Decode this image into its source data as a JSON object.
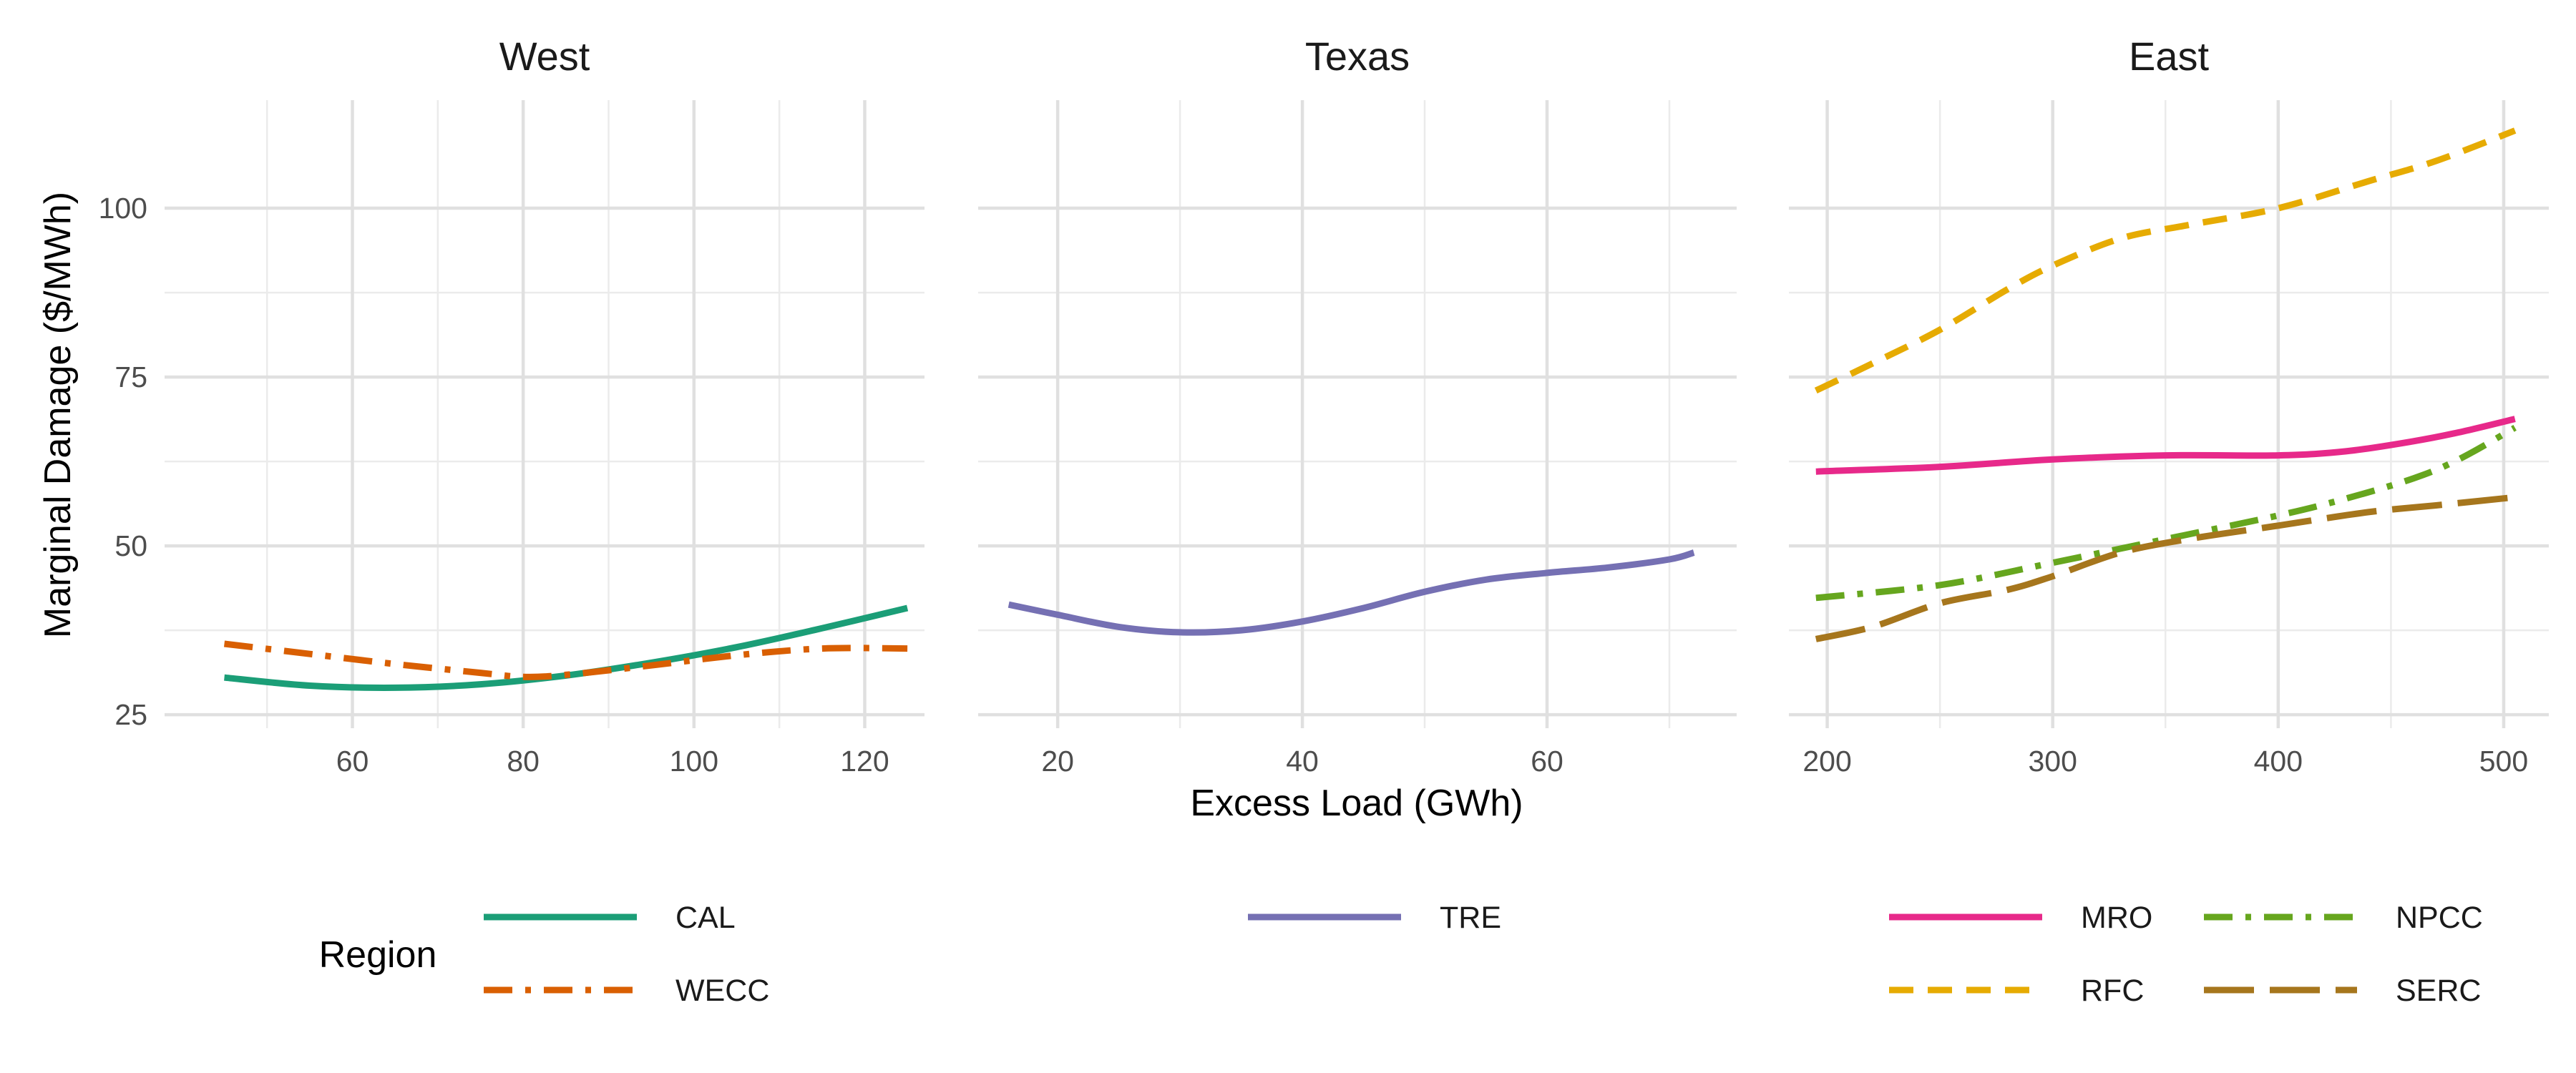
{
  "chart_data": {
    "type": "line",
    "ylabel": "Marginal Damage ($/MWh)",
    "xlabel": "Excess Load (GWh)",
    "legend_title": "Region",
    "legend_placement": "bottom",
    "grid": true,
    "ylim": [
      23,
      116
    ],
    "yticks": [
      25,
      50,
      75,
      100
    ],
    "panels": [
      {
        "title": "West",
        "xlim": [
          38,
          127
        ],
        "xticks": [
          60,
          80,
          100,
          120
        ],
        "series": [
          {
            "name": "CAL",
            "color": "#1B9E77",
            "dash": "solid",
            "x": [
              45,
              55,
              65,
              75,
              85,
              95,
              105,
              115,
              125
            ],
            "y": [
              30.5,
              29.3,
              29.0,
              29.5,
              30.8,
              32.7,
              35.0,
              37.8,
              40.8
            ]
          },
          {
            "name": "WECC",
            "color": "#D95F02",
            "dash": "dashdot",
            "x": [
              45,
              55,
              65,
              75,
              80,
              85,
              95,
              105,
              115,
              125
            ],
            "y": [
              35.5,
              34.0,
              32.5,
              31.2,
              30.6,
              30.9,
              32.3,
              33.8,
              34.8,
              34.8
            ]
          }
        ]
      },
      {
        "title": "Texas",
        "xlim": [
          13.5,
          75.5
        ],
        "xticks": [
          20,
          40,
          60
        ],
        "series": [
          {
            "name": "TRE",
            "color": "#7570B3",
            "dash": "solid",
            "x": [
              16,
              20,
              25,
              30,
              35,
              40,
              45,
              50,
              55,
              60,
              65,
              70,
              72
            ],
            "y": [
              41.3,
              39.8,
              38.0,
              37.2,
              37.5,
              38.8,
              40.8,
              43.2,
              45.0,
              46.0,
              46.8,
              48.0,
              49.0
            ]
          }
        ]
      },
      {
        "title": "East",
        "xlim": [
          183,
          520
        ],
        "xticks": [
          200,
          300,
          400,
          500
        ],
        "series": [
          {
            "name": "MRO",
            "color": "#E7298A",
            "dash": "solid",
            "x": [
              195,
              250,
              300,
              350,
              400,
              430,
              460,
              480,
              505
            ],
            "y": [
              61.0,
              61.7,
              62.8,
              63.4,
              63.4,
              64.0,
              65.5,
              66.8,
              68.8
            ]
          },
          {
            "name": "NPCC",
            "color": "#66A61E",
            "dash": "dashdot",
            "x": [
              195,
              250,
              300,
              350,
              400,
              430,
              460,
              480,
              505
            ],
            "y": [
              42.3,
              44.2,
              47.5,
              51.0,
              54.5,
              57.0,
              60.0,
              62.8,
              67.5
            ]
          },
          {
            "name": "RFC",
            "color": "#E6AB02",
            "dash": "dash",
            "x": [
              195,
              220,
              250,
              280,
              300,
              330,
              360,
              400,
              440,
              470,
              505
            ],
            "y": [
              73.0,
              77.0,
              82.0,
              88.0,
              91.5,
              95.5,
              97.5,
              100.0,
              104.0,
              107.0,
              111.5
            ]
          },
          {
            "name": "SERC",
            "color": "#A6761D",
            "dash": "longdash",
            "x": [
              195,
              220,
              250,
              280,
              300,
              330,
              360,
              400,
              440,
              470,
              505
            ],
            "y": [
              36.2,
              38.0,
              41.5,
              43.5,
              45.5,
              49.0,
              51.0,
              53.0,
              55.0,
              56.0,
              57.2
            ]
          }
        ]
      }
    ]
  }
}
